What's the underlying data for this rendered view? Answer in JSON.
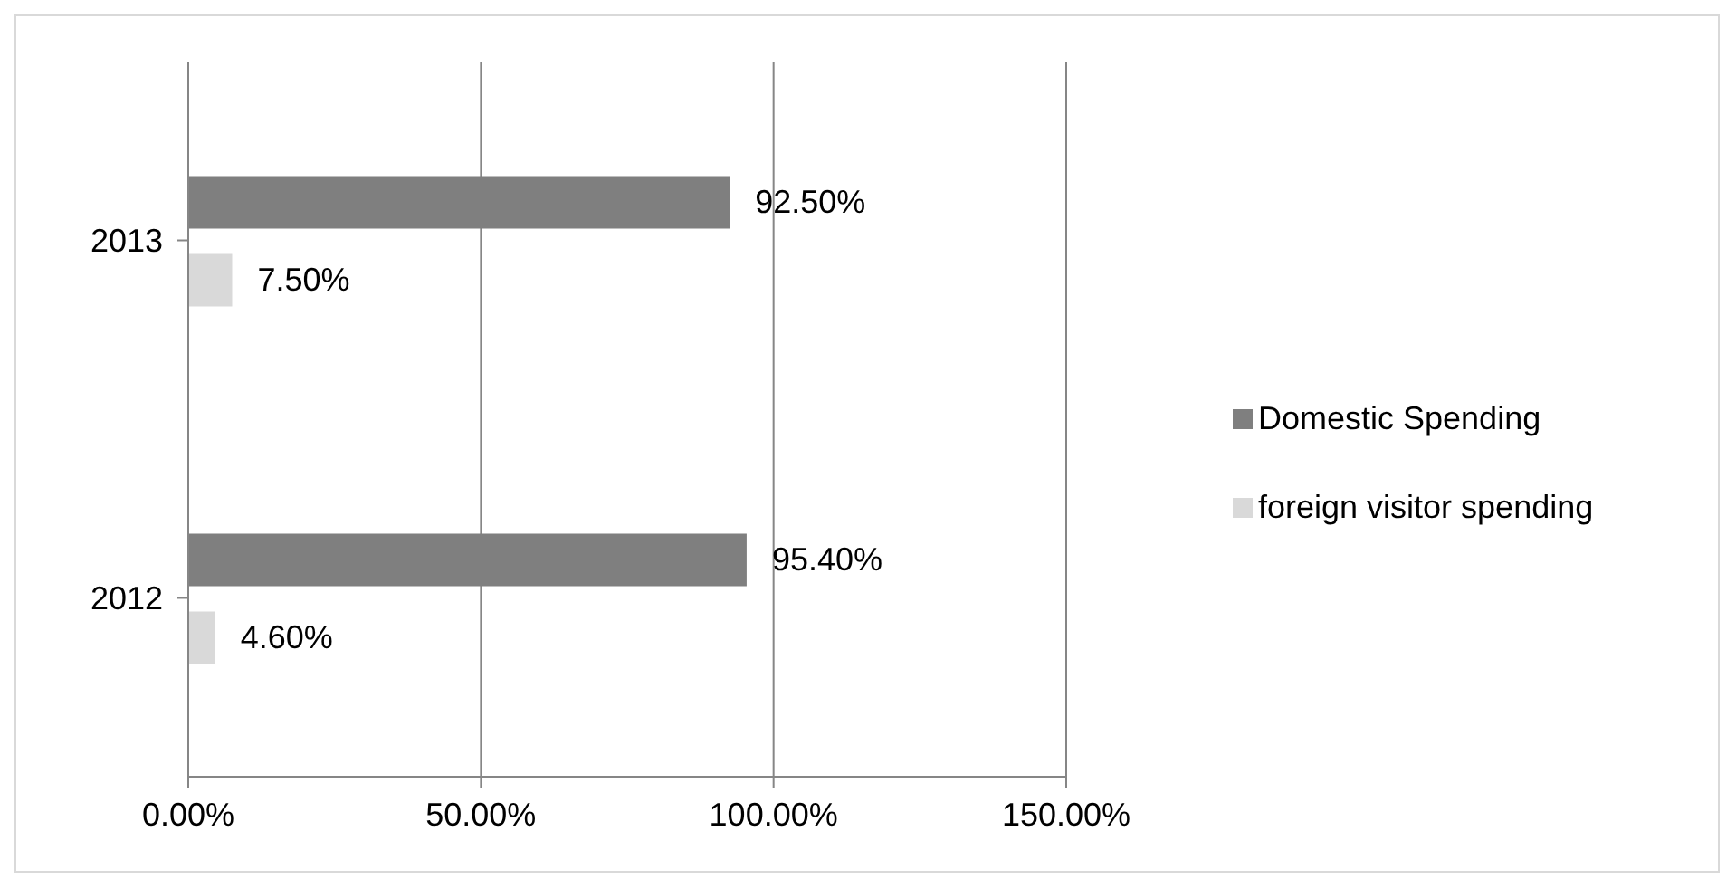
{
  "chart_data": {
    "type": "bar",
    "orientation": "horizontal",
    "categories": [
      "2013",
      "2012"
    ],
    "series": [
      {
        "name": "Domestic Spending",
        "color": "#7f7f7f",
        "values": [
          92.5,
          95.4
        ],
        "value_labels": [
          "92.50%",
          "95.40%"
        ]
      },
      {
        "name": "foreign visitor spending",
        "color": "#d9d9d9",
        "values": [
          7.5,
          4.6
        ],
        "value_labels": [
          "7.50%",
          "4.60%"
        ]
      }
    ],
    "xlim": [
      0,
      150
    ],
    "xticks": [
      {
        "value": 0,
        "label": "0.00%"
      },
      {
        "value": 50,
        "label": "50.00%"
      },
      {
        "value": 100,
        "label": "100.00%"
      },
      {
        "value": 150,
        "label": "150.00%"
      }
    ],
    "grid": "x",
    "legend": "right"
  }
}
